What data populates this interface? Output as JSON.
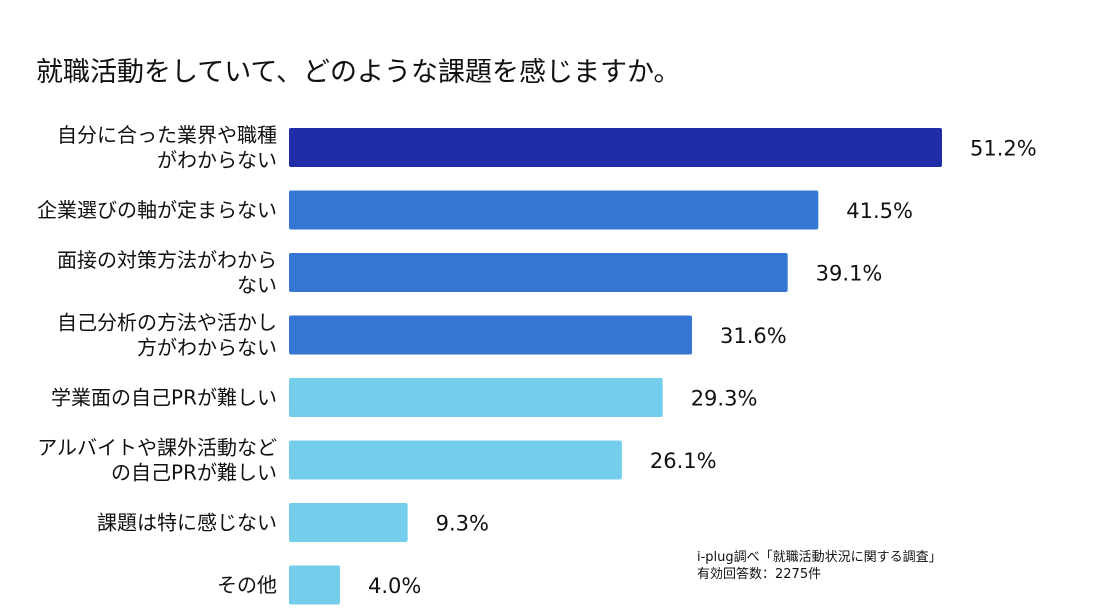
{
  "chart_data": {
    "type": "bar",
    "orientation": "horizontal",
    "title": "就職活動をしていて、どのような課題を感じますか。",
    "categories": [
      [
        "自分に合った業界や職種",
        "がわからない"
      ],
      [
        "企業選びの軸が定まらない"
      ],
      [
        "面接の対策方法がわから",
        "ない"
      ],
      [
        "自己分析の方法や活かし",
        "方がわからない"
      ],
      [
        "学業面の自己PRが難しい"
      ],
      [
        "アルバイトや課外活動など",
        "の自己PRが難しい"
      ],
      [
        "課題は特に感じない"
      ],
      [
        "その他"
      ]
    ],
    "values": [
      51.2,
      41.5,
      39.1,
      31.6,
      29.3,
      26.1,
      9.3,
      4.0
    ],
    "value_labels": [
      "51.2%",
      "41.5%",
      "39.1%",
      "31.6%",
      "29.3%",
      "26.1%",
      "9.3%",
      "4.0%"
    ],
    "bar_colors": [
      "#1f2ea8",
      "#3476d2",
      "#3476d2",
      "#3476d2",
      "#74cdea",
      "#74cdea",
      "#74cdea",
      "#74cdea"
    ],
    "xlim": [
      0,
      51.2
    ],
    "grid": false,
    "legend": "none"
  },
  "source": {
    "line1": "i-plug調べ「就職活動状況に関する調査」",
    "line2": "有効回答数：2275件"
  }
}
